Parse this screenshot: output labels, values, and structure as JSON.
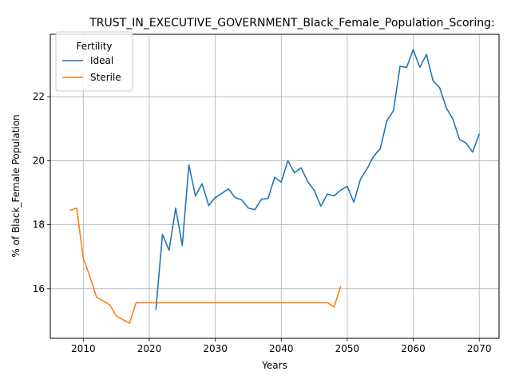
{
  "chart_data": {
    "type": "line",
    "title": "TRUST_IN_EXECUTIVE_GOVERNMENT_Black_Female_Population_Scoring:",
    "xlabel": "Years",
    "ylabel": "% of Black_Female Population",
    "xlim": [
      2005,
      2073
    ],
    "ylim": [
      14.45,
      23.95
    ],
    "xticks": [
      2010,
      2020,
      2030,
      2040,
      2050,
      2060,
      2070
    ],
    "yticks": [
      16,
      18,
      20,
      22
    ],
    "grid": true,
    "legend": {
      "title": "Fertility",
      "placement": "top-left"
    },
    "series": [
      {
        "name": "Ideal",
        "color": "#1f77b4",
        "x": [
          2021,
          2022,
          2023,
          2024,
          2025,
          2026,
          2027,
          2028,
          2029,
          2030,
          2031,
          2032,
          2033,
          2034,
          2035,
          2036,
          2037,
          2038,
          2039,
          2040,
          2041,
          2042,
          2043,
          2044,
          2045,
          2046,
          2047,
          2048,
          2049,
          2050,
          2051,
          2052,
          2053,
          2054,
          2055,
          2056,
          2057,
          2058,
          2059,
          2060,
          2061,
          2062,
          2063,
          2064,
          2065,
          2066,
          2067,
          2068,
          2069,
          2070
        ],
        "y": [
          15.35,
          17.7,
          17.2,
          18.52,
          17.35,
          19.87,
          18.9,
          19.28,
          18.6,
          18.85,
          18.98,
          19.12,
          18.85,
          18.78,
          18.52,
          18.47,
          18.8,
          18.82,
          19.48,
          19.33,
          20.0,
          19.62,
          19.78,
          19.35,
          19.07,
          18.58,
          18.96,
          18.9,
          19.08,
          19.2,
          18.7,
          19.42,
          19.75,
          20.14,
          20.38,
          21.25,
          21.56,
          22.95,
          22.92,
          23.47,
          22.92,
          23.32,
          22.5,
          22.28,
          21.66,
          21.3,
          20.67,
          20.55,
          20.27,
          20.83
        ]
      },
      {
        "name": "Sterile",
        "color": "#ff7f0e",
        "x": [
          2008,
          2009,
          2010,
          2011,
          2012,
          2013,
          2014,
          2015,
          2016,
          2017,
          2018,
          2019,
          2020,
          2021,
          2022,
          2023,
          2024,
          2025,
          2026,
          2027,
          2028,
          2029,
          2030,
          2031,
          2032,
          2033,
          2034,
          2035,
          2036,
          2037,
          2038,
          2039,
          2040,
          2041,
          2042,
          2043,
          2044,
          2045,
          2046,
          2047,
          2048,
          2049
        ],
        "y": [
          18.45,
          18.52,
          16.95,
          16.38,
          15.74,
          15.62,
          15.5,
          15.15,
          15.03,
          14.92,
          15.56,
          15.56,
          15.56,
          15.56,
          15.56,
          15.56,
          15.56,
          15.56,
          15.56,
          15.56,
          15.56,
          15.56,
          15.56,
          15.56,
          15.56,
          15.56,
          15.56,
          15.56,
          15.56,
          15.56,
          15.56,
          15.56,
          15.56,
          15.56,
          15.56,
          15.56,
          15.56,
          15.56,
          15.56,
          15.56,
          15.43,
          16.07
        ]
      }
    ]
  }
}
